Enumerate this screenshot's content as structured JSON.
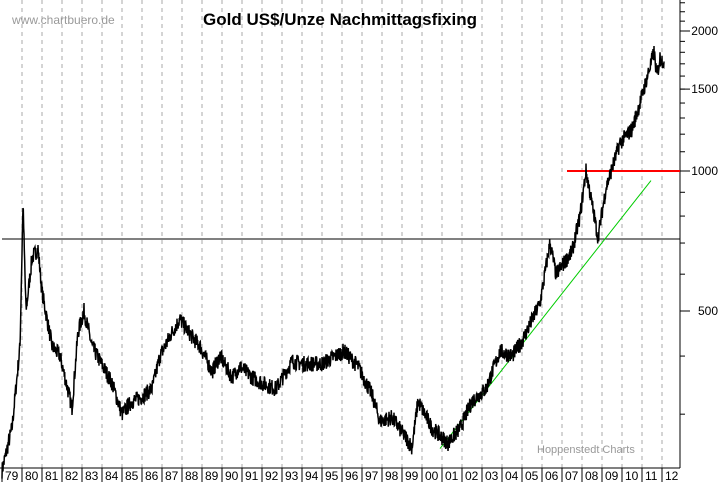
{
  "chart_data": {
    "type": "line",
    "title": "Gold US$/Unze Nachmittagsfixing",
    "watermark": "www.chartbuero.de",
    "source": "Hoppenstedt Charts",
    "y_scale": "log",
    "ylim": [
      230,
      2330
    ],
    "y_ticks": [
      500,
      1000,
      1500,
      2000
    ],
    "x_tick_labels": [
      "79",
      "80",
      "81",
      "82",
      "83",
      "84",
      "85",
      "86",
      "87",
      "88",
      "89",
      "90",
      "91",
      "92",
      "93",
      "94",
      "95",
      "96",
      "97",
      "98",
      "99",
      "00",
      "01",
      "02",
      "03",
      "04",
      "05",
      "06",
      "07",
      "08",
      "09",
      "10",
      "11",
      "12"
    ],
    "grid": "vertical dashed",
    "colors": {
      "price": "#000000",
      "resistance": "#ff0000",
      "trend": "#00cc00",
      "support": "#000000"
    },
    "series": [
      {
        "x": [
          1979.0,
          1979.5,
          1979.9,
          1980.05,
          1980.2,
          1980.5,
          1980.8,
          1981.0,
          1981.5,
          1981.9,
          1982.5,
          1982.8,
          1983.1,
          1983.5,
          1983.9,
          1984.5,
          1985.0,
          1985.5,
          1985.9,
          1986.5,
          1986.9,
          1987.5,
          1987.9,
          1988.5,
          1988.9,
          1989.5,
          1989.9,
          1990.5,
          1990.9,
          1991.5,
          1992.0,
          1992.7,
          1993.5,
          1994.0,
          1995.0,
          1996.1,
          1996.8,
          1997.5,
          1997.9,
          1998.5,
          1999.5,
          1999.8,
          2000.5,
          2001.3,
          2001.9,
          2002.5,
          2003.2,
          2003.9,
          2004.5,
          2005.0,
          2005.9,
          2006.4,
          2006.7,
          2007.5,
          2007.9,
          2008.2,
          2008.8,
          2009.2,
          2009.9,
          2010.5,
          2010.9,
          2011.6,
          2011.75,
          2011.9,
          2012.1
        ],
        "y": [
          227,
          280,
          420,
          850,
          500,
          650,
          680,
          550,
          420,
          400,
          310,
          450,
          500,
          420,
          390,
          350,
          300,
          320,
          325,
          340,
          400,
          450,
          480,
          440,
          420,
          370,
          400,
          360,
          380,
          360,
          350,
          340,
          390,
          385,
          385,
          410,
          380,
          330,
          290,
          295,
          255,
          320,
          280,
          260,
          280,
          320,
          340,
          410,
          400,
          430,
          520,
          700,
          600,
          670,
          800,
          1000,
          720,
          920,
          1150,
          1230,
          1400,
          1800,
          1600,
          1750,
          1720
        ]
      }
    ],
    "lines": [
      {
        "kind": "horizontal",
        "value": 1000,
        "from": 2007.25,
        "to": 2012.9,
        "color": "#ff0000"
      },
      {
        "kind": "horizontal",
        "value": 714,
        "from": 1979.0,
        "to": 2012.9,
        "color": "#000000"
      },
      {
        "kind": "trend",
        "x": [
          2000.9,
          2011.45
        ],
        "y": [
          253,
          954
        ],
        "color": "#00cc00"
      }
    ]
  }
}
